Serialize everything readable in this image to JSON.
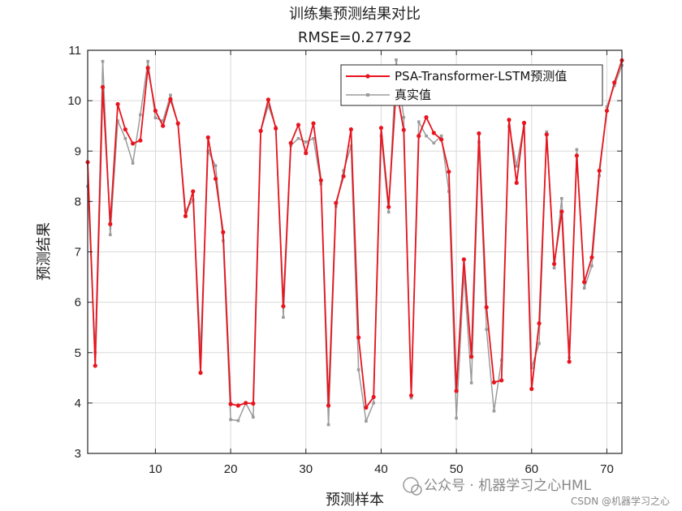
{
  "chart_data": {
    "type": "line",
    "title": "训练集预测结果对比",
    "subtitle": "RMSE=0.27792",
    "xlabel": "预测样本",
    "ylabel": "预测结果",
    "xlim": [
      1,
      72
    ],
    "ylim": [
      3,
      11
    ],
    "xticks": [
      10,
      20,
      30,
      40,
      50,
      60,
      70
    ],
    "yticks": [
      3,
      4,
      5,
      6,
      7,
      8,
      9,
      10,
      11
    ],
    "grid": true,
    "legend_position": "top-right",
    "x": [
      1,
      2,
      3,
      4,
      5,
      6,
      7,
      8,
      9,
      10,
      11,
      12,
      13,
      14,
      15,
      16,
      17,
      18,
      19,
      20,
      21,
      22,
      23,
      24,
      25,
      26,
      27,
      28,
      29,
      30,
      31,
      32,
      33,
      34,
      35,
      36,
      37,
      38,
      39,
      40,
      41,
      42,
      43,
      44,
      45,
      46,
      47,
      48,
      49,
      50,
      51,
      52,
      53,
      54,
      55,
      56,
      57,
      58,
      59,
      60,
      61,
      62,
      63,
      64,
      65,
      66,
      67,
      68,
      69,
      70,
      71,
      72
    ],
    "series": [
      {
        "name": "PSA-Transformer-LSTM预测值",
        "color": "#e8141e",
        "marker": "dot",
        "values": [
          8.78,
          4.74,
          10.27,
          7.55,
          9.93,
          9.43,
          9.15,
          9.21,
          10.65,
          9.8,
          9.5,
          10.03,
          9.55,
          7.71,
          8.2,
          4.6,
          9.27,
          8.45,
          7.39,
          3.98,
          3.95,
          4.0,
          3.99,
          9.4,
          10.02,
          9.45,
          5.92,
          9.16,
          9.52,
          8.96,
          9.55,
          8.42,
          3.95,
          7.97,
          8.5,
          9.43,
          5.3,
          3.91,
          4.12,
          9.46,
          7.89,
          10.25,
          9.42,
          4.15,
          9.3,
          9.67,
          9.36,
          9.23,
          8.59,
          4.24,
          6.85,
          4.92,
          9.35,
          5.9,
          4.41,
          4.45,
          9.62,
          8.37,
          9.56,
          4.28,
          5.58,
          9.33,
          6.76,
          7.8,
          4.82,
          8.91,
          6.4,
          6.89,
          8.61,
          9.8,
          10.36,
          10.8
        ]
      },
      {
        "name": "真实值",
        "color": "#9b9b9b",
        "marker": "square",
        "values": [
          8.3,
          5.0,
          10.78,
          7.34,
          9.6,
          9.25,
          8.76,
          9.72,
          10.78,
          9.66,
          9.6,
          10.11,
          9.53,
          7.82,
          8.03,
          5.05,
          9.0,
          8.71,
          7.22,
          3.67,
          3.65,
          4.0,
          3.72,
          9.4,
          9.9,
          9.48,
          5.7,
          9.11,
          9.25,
          9.18,
          9.25,
          8.35,
          3.57,
          7.9,
          8.61,
          9.1,
          4.66,
          3.64,
          4.0,
          9.3,
          7.79,
          10.81,
          9.67,
          4.1,
          9.58,
          9.3,
          9.16,
          9.3,
          8.2,
          3.7,
          6.58,
          4.4,
          9.18,
          5.46,
          3.84,
          4.85,
          9.49,
          8.7,
          9.54,
          4.7,
          5.18,
          9.38,
          6.68,
          8.06,
          4.9,
          9.03,
          6.28,
          6.72,
          8.51,
          9.88,
          10.3,
          10.7
        ]
      }
    ]
  },
  "watermark": {
    "main": "公众号 · 机器学习之心HML",
    "small": "CSDN @机器学习之心"
  }
}
